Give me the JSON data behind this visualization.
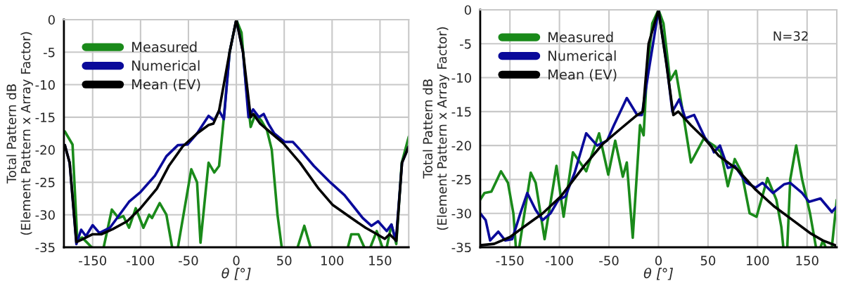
{
  "chart_data": [
    {
      "type": "line",
      "xlabel": "θ [°]",
      "ylabel": "Total Pattern dB\n(Element Pattern x Array Factor)",
      "xlim": [
        -180,
        180
      ],
      "ylim": [
        -35,
        0
      ],
      "xticks": [
        -150,
        -100,
        -50,
        0,
        50,
        100,
        150
      ],
      "yticks": [
        0,
        -5,
        -10,
        -15,
        -20,
        -25,
        -30,
        -35
      ],
      "grid": true,
      "legend": "top left",
      "marker": "none",
      "line_style": "solid",
      "series": [
        {
          "name": "Measured",
          "color": "#1a8a1a",
          "x": [
            -179,
            -171,
            -166,
            -161,
            -151,
            -145,
            -138.5,
            -130,
            -123,
            -118,
            -112,
            -105,
            -97,
            -91,
            -88,
            -80,
            -73,
            -67,
            -64,
            -61,
            -47,
            -41,
            -37.4,
            -29,
            -23,
            -18,
            -13,
            -7,
            0,
            5.4,
            10,
            15,
            20,
            26,
            32,
            37,
            43,
            47.4,
            55,
            64,
            71,
            77.5,
            100,
            116.5,
            120,
            127.5,
            133.6,
            137,
            140,
            146.6,
            152.5,
            155,
            157,
            162,
            167,
            172.7,
            180
          ],
          "values": [
            -17.2,
            -19.2,
            -34,
            -33.5,
            -35,
            null,
            -35,
            -29.2,
            -30.5,
            -30.2,
            -32,
            -29,
            -32,
            -30,
            -30.5,
            -28.2,
            -30,
            -35,
            null,
            -35,
            -23,
            -25,
            -34.3,
            -22,
            -23.5,
            -22.5,
            -15,
            -5,
            0,
            -2,
            -10,
            -16.5,
            -14.5,
            -15.5,
            -17,
            -20,
            -30,
            -35,
            null,
            -35,
            -31.7,
            -35,
            null,
            -35,
            -33,
            -33,
            -35,
            null,
            -35,
            -32.5,
            -35,
            null,
            -35,
            -31.5,
            -34.5,
            -22,
            -18
          ]
        },
        {
          "name": "Numerical",
          "color": "#0a0a9a",
          "x": [
            -179,
            -174,
            -167,
            -162,
            -157,
            -150,
            -143,
            -132,
            -122,
            -112,
            -100,
            -85,
            -73,
            -61,
            -51,
            -41,
            -29,
            -23,
            -18,
            -13,
            -7,
            0,
            7,
            12.7,
            17.6,
            23.7,
            28.6,
            33.5,
            39.6,
            50.6,
            59,
            66.5,
            81,
            98,
            113,
            132,
            141,
            148,
            157,
            162,
            166.6,
            173,
            180
          ],
          "values": [
            -19.3,
            -22,
            -34.5,
            -32.3,
            -33.3,
            -31.6,
            -32.8,
            -32,
            -30,
            -28,
            -26.5,
            -24,
            -21,
            -19.3,
            -19.2,
            -17.5,
            -14.8,
            -15.5,
            -14,
            -15.3,
            -5,
            0,
            -5,
            -15,
            -13.8,
            -15,
            -14.5,
            -16,
            -17.5,
            -18.8,
            -18.8,
            -20,
            -22.5,
            -25,
            -27,
            -30.5,
            -31.7,
            -31,
            -32.5,
            -31.5,
            -34,
            -22,
            -19.5
          ]
        },
        {
          "name": "Mean (EV)",
          "color": "#000000",
          "x": [
            -179,
            -174,
            -167,
            -161,
            -150,
            -141,
            -129,
            -114,
            -100,
            -83,
            -70.5,
            -56,
            -41,
            -29,
            -24,
            -18,
            -7,
            0,
            7,
            15,
            17.6,
            25,
            37,
            49,
            66.5,
            86,
            100.7,
            120,
            135,
            147,
            155,
            160,
            167,
            173,
            180
          ],
          "values": [
            -19.3,
            -22,
            -34.2,
            -33.8,
            -33,
            -33,
            -32.2,
            -31,
            -29,
            -26,
            -22.5,
            -19.5,
            -17.5,
            -16.2,
            -16,
            -14,
            -5,
            0,
            -5,
            -15,
            -14.5,
            -16,
            -17.5,
            -19,
            -22,
            -26,
            -28.5,
            -30.5,
            -32,
            -33,
            -33.7,
            -33,
            -34,
            -22,
            -19.5
          ]
        }
      ]
    },
    {
      "type": "line",
      "xlabel": "θ [°]",
      "ylabel": "Total Pattern dB\n(Element Pattern x Array Factor)",
      "xlim": [
        -180,
        180
      ],
      "ylim": [
        -35,
        0
      ],
      "xticks": [
        -150,
        -100,
        -50,
        0,
        50,
        100,
        150
      ],
      "yticks": [
        0,
        -5,
        -10,
        -15,
        -20,
        -25,
        -30,
        -35
      ],
      "grid": true,
      "legend": "top left",
      "marker": "none",
      "line_style": "solid",
      "annotations": [
        "N=32"
      ],
      "series": [
        {
          "name": "Measured",
          "color": "#1a8a1a",
          "x": [
            -180,
            -175.7,
            -168.7,
            -159,
            -152,
            -146.5,
            -144,
            -142,
            -140.6,
            -129,
            -124,
            -115,
            -103,
            -95.8,
            -86.4,
            -73,
            -60,
            -50.7,
            -43.7,
            -36,
            -32,
            -26,
            -18.7,
            -15,
            -12,
            -6.3,
            0,
            5,
            11.7,
            17.5,
            24.5,
            32.7,
            45.6,
            56,
            63,
            70,
            77,
            84,
            92,
            99,
            110,
            119,
            124,
            126,
            128,
            130,
            133,
            139,
            145,
            153,
            159,
            161,
            163.5,
            166,
            168.7,
            172,
            175,
            180
          ],
          "values": [
            -28,
            -27,
            -26.8,
            -23.8,
            -25.5,
            -30,
            -35,
            null,
            -35,
            -24,
            -25.5,
            -33.8,
            -23,
            -30.5,
            -21,
            -23.8,
            -18.2,
            -24.3,
            -19.3,
            -24.6,
            -22.5,
            -33.6,
            -17,
            -18.5,
            -10,
            -2,
            0,
            -2,
            -10.4,
            -9,
            -15,
            -22.5,
            -19,
            -20,
            -21,
            -26,
            -22,
            -24,
            -30,
            -30.5,
            -24.8,
            -28,
            -32,
            -35,
            null,
            -35,
            -25,
            -20,
            -25,
            -30,
            -35,
            null,
            -35,
            -34,
            -35,
            null,
            -35,
            -28
          ]
        },
        {
          "name": "Numerical",
          "color": "#0a0a9a",
          "x": [
            -180,
            -174.5,
            -170,
            -161.7,
            -154.7,
            -147.7,
            -139.5,
            -132.5,
            -124,
            -117,
            -109,
            -101,
            -94,
            -84.6,
            -73,
            -62,
            -52,
            -45,
            -32,
            -21.5,
            -16.8,
            -11,
            0,
            8.2,
            14,
            21,
            27,
            36,
            46.7,
            53.7,
            56,
            62,
            70,
            77,
            88.8,
            98,
            105,
            115.6,
            127,
            133,
            145,
            152,
            163.5,
            175,
            180
          ],
          "values": [
            -30,
            -31,
            -34,
            -32.7,
            -34,
            -33.8,
            -30,
            -27,
            -29.5,
            -31,
            -30,
            -28,
            -27.5,
            -24,
            -18.2,
            -20,
            -19.3,
            -17,
            -13,
            -15.5,
            -15.5,
            -10,
            0,
            -8,
            -15,
            -13.2,
            -16,
            -15.5,
            -18.8,
            -20.2,
            -21,
            -20,
            -23.3,
            -23,
            -25.5,
            -26.2,
            -25.5,
            -27,
            -25.7,
            -25.5,
            -27,
            -28.3,
            -27.8,
            -29.8,
            -29
          ]
        },
        {
          "name": "Mean (EV)",
          "color": "#000000",
          "x": [
            -180,
            -166,
            -150,
            -136,
            -117,
            -98.6,
            -75,
            -56.5,
            -38,
            -21.5,
            -15.7,
            -10,
            0,
            8,
            15,
            20,
            32.7,
            46.7,
            60.7,
            79.4,
            98,
            117,
            135.5,
            154,
            166,
            180
          ],
          "values": [
            -34.7,
            -34.5,
            -33.5,
            -32,
            -30,
            -27.5,
            -23,
            -19.8,
            -17.5,
            -15.5,
            -15,
            -5,
            0,
            -8,
            -15.5,
            -15,
            -17,
            -19,
            -21.5,
            -23.5,
            -26.5,
            -29,
            -31,
            -33,
            -34,
            -34.8
          ]
        }
      ]
    }
  ]
}
